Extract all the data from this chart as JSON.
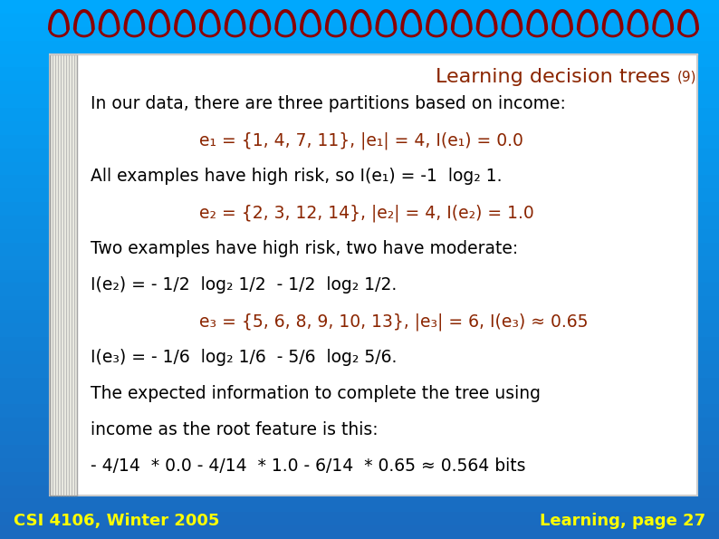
{
  "title": "Learning decision trees",
  "title_num": "(9)",
  "bg_color_top": "#1a6abf",
  "bg_color_bot": "#00aaff",
  "paper_color": "#ffffff",
  "title_color": "#8B2500",
  "body_color": "#000000",
  "highlight_color": "#8B2500",
  "footer_left": "CSI 4106, Winter 2005",
  "footer_right": "Learning, page 27",
  "footer_color": "#ffff00",
  "spiral_color": "#8B0000",
  "n_loops": 26,
  "lines": [
    {
      "type": "body",
      "text": "In our data, there are three partitions based on income:",
      "indent": 0
    },
    {
      "type": "highlight",
      "text": "e₁ = {1, 4, 7, 11}, |e₁| = 4, I(e₁) = 0.0",
      "indent": 1
    },
    {
      "type": "body",
      "text": "All examples have high risk, so I(e₁) = -1  log₂ 1.",
      "indent": 0
    },
    {
      "type": "highlight",
      "text": "e₂ = {2, 3, 12, 14}, |e₂| = 4, I(e₂) = 1.0",
      "indent": 1
    },
    {
      "type": "body",
      "text": "Two examples have high risk, two have moderate:",
      "indent": 0
    },
    {
      "type": "body",
      "text": "I(e₂) = - 1/2  log₂ 1/2  - 1/2  log₂ 1/2.",
      "indent": 0
    },
    {
      "type": "highlight",
      "text": "e₃ = {5, 6, 8, 9, 10, 13}, |e₃| = 6, I(e₃) ≈ 0.65",
      "indent": 1
    },
    {
      "type": "body",
      "text": "I(e₃) = - 1/6  log₂ 1/6  - 5/6  log₂ 5/6.",
      "indent": 0
    },
    {
      "type": "body",
      "text": "The expected information to complete the tree using",
      "indent": 0
    },
    {
      "type": "body",
      "text": "income as the root feature is this:",
      "indent": 0
    },
    {
      "type": "body",
      "text": "- 4/14  * 0.0 - 4/14  * 1.0 - 6/14  * 0.65 ≈ 0.564 bits",
      "indent": 0
    }
  ]
}
